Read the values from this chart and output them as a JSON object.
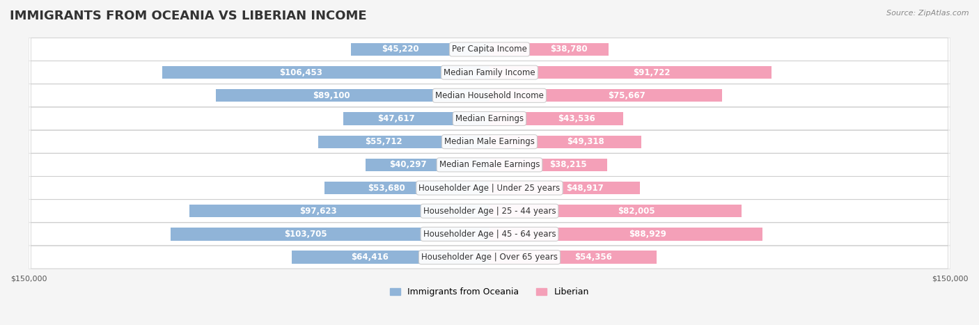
{
  "title": "IMMIGRANTS FROM OCEANIA VS LIBERIAN INCOME",
  "source": "Source: ZipAtlas.com",
  "categories": [
    "Per Capita Income",
    "Median Family Income",
    "Median Household Income",
    "Median Earnings",
    "Median Male Earnings",
    "Median Female Earnings",
    "Householder Age | Under 25 years",
    "Householder Age | 25 - 44 years",
    "Householder Age | 45 - 64 years",
    "Householder Age | Over 65 years"
  ],
  "oceania_values": [
    45220,
    106453,
    89100,
    47617,
    55712,
    40297,
    53680,
    97623,
    103705,
    64416
  ],
  "liberian_values": [
    38780,
    91722,
    75667,
    43536,
    49318,
    38215,
    48917,
    82005,
    88929,
    54356
  ],
  "oceania_labels": [
    "$45,220",
    "$106,453",
    "$89,100",
    "$47,617",
    "$55,712",
    "$40,297",
    "$53,680",
    "$97,623",
    "$103,705",
    "$64,416"
  ],
  "liberian_labels": [
    "$38,780",
    "$91,722",
    "$75,667",
    "$43,536",
    "$49,318",
    "$38,215",
    "$48,917",
    "$82,005",
    "$88,929",
    "$54,356"
  ],
  "oceania_color": "#90b4d8",
  "liberian_color": "#f4a0b8",
  "oceania_color_dark": "#6495c8",
  "liberian_color_dark": "#f07090",
  "max_value": 150000,
  "bg_color": "#f5f5f5",
  "row_bg_color": "#ffffff",
  "row_alt_color": "#f0f0f0",
  "bar_height": 0.55,
  "title_fontsize": 13,
  "label_fontsize": 8.5,
  "category_fontsize": 8.5,
  "legend_fontsize": 9,
  "axis_label_fontsize": 8
}
